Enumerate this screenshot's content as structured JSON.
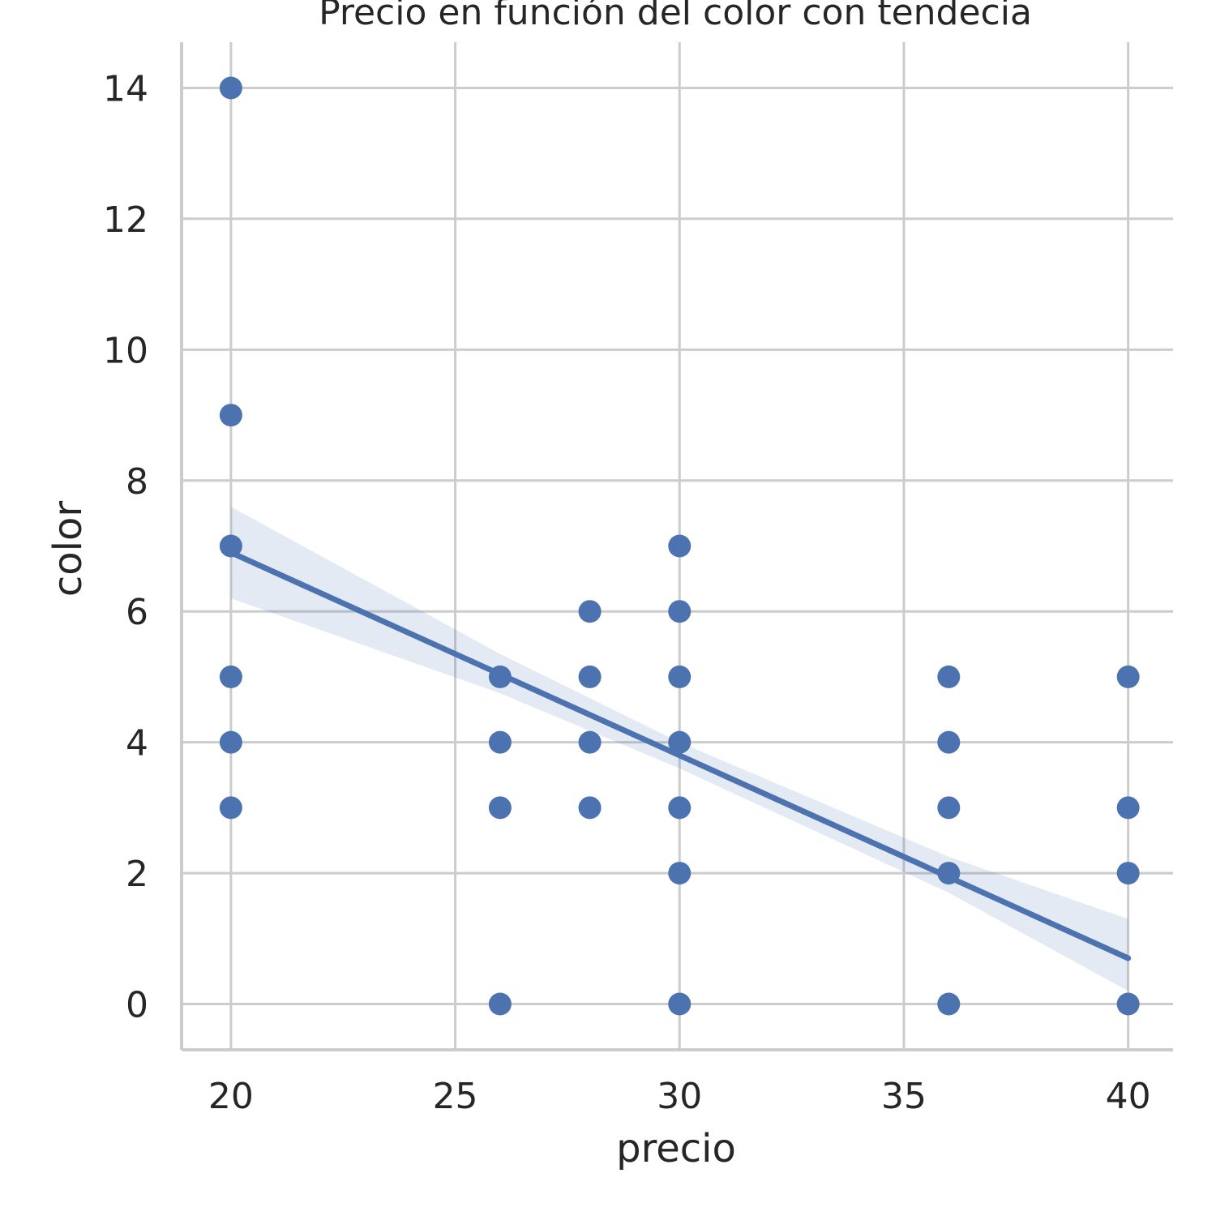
{
  "chart_data": {
    "type": "scatter",
    "title": "Precio en función del color con tendecia",
    "xlabel": "precio",
    "ylabel": "color",
    "xlim": [
      18.9,
      41.0
    ],
    "ylim": [
      -0.7,
      14.7
    ],
    "xticks": [
      20,
      25,
      30,
      35,
      40
    ],
    "yticks": [
      0,
      2,
      4,
      6,
      8,
      10,
      12,
      14
    ],
    "grid": true,
    "point_color": "#4c72b0",
    "band_color": "#4c72b0",
    "points": [
      {
        "x": 20,
        "y": 14
      },
      {
        "x": 20,
        "y": 9
      },
      {
        "x": 20,
        "y": 7
      },
      {
        "x": 20,
        "y": 5
      },
      {
        "x": 20,
        "y": 4
      },
      {
        "x": 20,
        "y": 3
      },
      {
        "x": 26,
        "y": 5
      },
      {
        "x": 26,
        "y": 4
      },
      {
        "x": 26,
        "y": 3
      },
      {
        "x": 26,
        "y": 0
      },
      {
        "x": 28,
        "y": 6
      },
      {
        "x": 28,
        "y": 5
      },
      {
        "x": 28,
        "y": 4
      },
      {
        "x": 28,
        "y": 3
      },
      {
        "x": 30,
        "y": 7
      },
      {
        "x": 30,
        "y": 6
      },
      {
        "x": 30,
        "y": 5
      },
      {
        "x": 30,
        "y": 4
      },
      {
        "x": 30,
        "y": 3
      },
      {
        "x": 30,
        "y": 2
      },
      {
        "x": 30,
        "y": 0
      },
      {
        "x": 36,
        "y": 5
      },
      {
        "x": 36,
        "y": 4
      },
      {
        "x": 36,
        "y": 3
      },
      {
        "x": 36,
        "y": 2
      },
      {
        "x": 36,
        "y": 0
      },
      {
        "x": 40,
        "y": 5
      },
      {
        "x": 40,
        "y": 3
      },
      {
        "x": 40,
        "y": 2
      },
      {
        "x": 40,
        "y": 0
      }
    ],
    "trend": {
      "start": {
        "x": 20,
        "y": 6.9
      },
      "end": {
        "x": 40,
        "y": 0.7
      }
    },
    "confidence_band": [
      {
        "x": 20,
        "lower": 6.2,
        "upper": 7.6
      },
      {
        "x": 26,
        "lower": 4.75,
        "upper": 5.35
      },
      {
        "x": 30,
        "lower": 3.6,
        "upper": 4.0
      },
      {
        "x": 36,
        "lower": 1.7,
        "upper": 2.25
      },
      {
        "x": 40,
        "lower": 0.2,
        "upper": 1.3
      }
    ]
  }
}
